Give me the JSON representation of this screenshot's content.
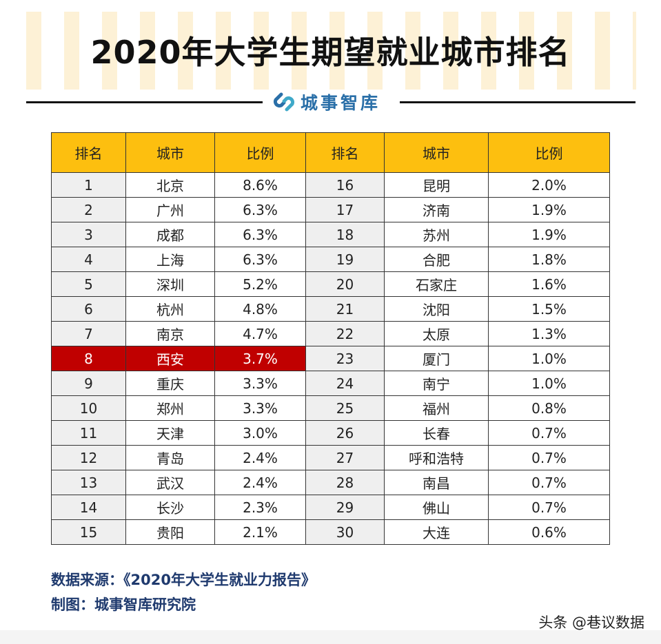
{
  "title": "2020年大学生期望就业城市排名",
  "brand": "城事智库",
  "headers": [
    "排名",
    "城市",
    "比例",
    "排名",
    "城市",
    "比例"
  ],
  "rows": [
    [
      "1",
      "北京",
      "8.6%",
      "16",
      "昆明",
      "2.0%"
    ],
    [
      "2",
      "广州",
      "6.3%",
      "17",
      "济南",
      "1.9%"
    ],
    [
      "3",
      "成都",
      "6.3%",
      "18",
      "苏州",
      "1.9%"
    ],
    [
      "4",
      "上海",
      "6.3%",
      "19",
      "合肥",
      "1.8%"
    ],
    [
      "5",
      "深圳",
      "5.2%",
      "20",
      "石家庄",
      "1.6%"
    ],
    [
      "6",
      "杭州",
      "4.8%",
      "21",
      "沈阳",
      "1.5%"
    ],
    [
      "7",
      "南京",
      "4.7%",
      "22",
      "太原",
      "1.3%"
    ],
    [
      "8",
      "西安",
      "3.7%",
      "23",
      "厦门",
      "1.0%"
    ],
    [
      "9",
      "重庆",
      "3.3%",
      "24",
      "南宁",
      "1.0%"
    ],
    [
      "10",
      "郑州",
      "3.3%",
      "25",
      "福州",
      "0.8%"
    ],
    [
      "11",
      "天津",
      "3.0%",
      "26",
      "长春",
      "0.7%"
    ],
    [
      "12",
      "青岛",
      "2.4%",
      "27",
      "呼和浩特",
      "0.7%"
    ],
    [
      "13",
      "武汉",
      "2.4%",
      "28",
      "南昌",
      "0.7%"
    ],
    [
      "14",
      "长沙",
      "2.3%",
      "29",
      "佛山",
      "0.7%"
    ],
    [
      "15",
      "贵阳",
      "2.1%",
      "30",
      "大连",
      "0.6%"
    ]
  ],
  "highlight_rank": "8",
  "highlight_color": "#c00000",
  "header_color": "#fdbf0f",
  "footer": {
    "source": "数据来源：《2020年大学生就业力报告》",
    "made_by": "制图：城事智库研究院"
  },
  "watermark": "头条 @巷议数据"
}
